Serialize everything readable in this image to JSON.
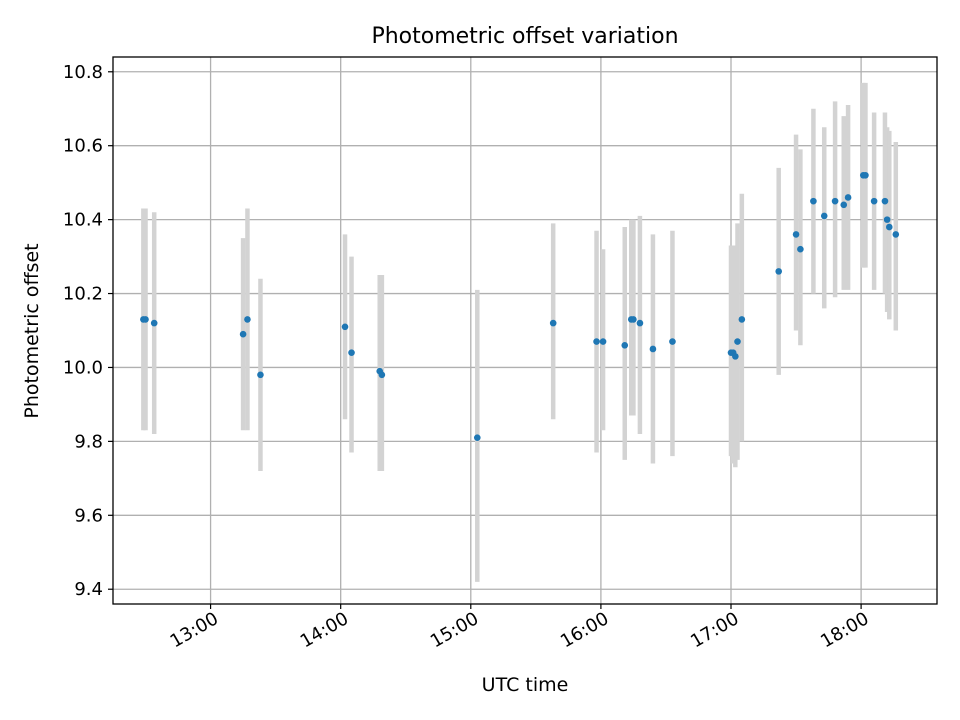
{
  "chart_data": {
    "type": "scatter",
    "title": "Photometric offset variation",
    "xlabel": "UTC time",
    "ylabel": "Photometric offset",
    "x_unit": "hours UTC",
    "xlim": [
      "12:15",
      "18:35"
    ],
    "ylim": [
      9.36,
      10.84
    ],
    "x_ticks": [
      "13:00",
      "14:00",
      "15:00",
      "16:00",
      "17:00",
      "18:00"
    ],
    "y_ticks": [
      "9.4",
      "9.6",
      "9.8",
      "10.0",
      "10.2",
      "10.4",
      "10.6",
      "10.8"
    ],
    "grid": true,
    "legend": "none",
    "colors": {
      "point": "#1f77b4",
      "errorbar": "#d3d3d3",
      "grid": "#b0b0b0"
    },
    "points": [
      {
        "t": "12:29",
        "y": 10.13,
        "lo": 9.83,
        "hi": 10.43
      },
      {
        "t": "12:30",
        "y": 10.13,
        "lo": 9.83,
        "hi": 10.43
      },
      {
        "t": "12:34",
        "y": 10.12,
        "lo": 9.82,
        "hi": 10.42
      },
      {
        "t": "13:15",
        "y": 10.09,
        "lo": 9.83,
        "hi": 10.35
      },
      {
        "t": "13:17",
        "y": 10.13,
        "lo": 9.83,
        "hi": 10.43
      },
      {
        "t": "13:23",
        "y": 9.98,
        "lo": 9.72,
        "hi": 10.24
      },
      {
        "t": "14:02",
        "y": 10.11,
        "lo": 9.86,
        "hi": 10.36
      },
      {
        "t": "14:05",
        "y": 10.04,
        "lo": 9.77,
        "hi": 10.3
      },
      {
        "t": "14:18",
        "y": 9.99,
        "lo": 9.72,
        "hi": 10.25
      },
      {
        "t": "14:19",
        "y": 9.98,
        "lo": 9.72,
        "hi": 10.25
      },
      {
        "t": "15:03",
        "y": 9.81,
        "lo": 9.42,
        "hi": 10.21
      },
      {
        "t": "15:38",
        "y": 10.12,
        "lo": 9.86,
        "hi": 10.39
      },
      {
        "t": "15:58",
        "y": 10.07,
        "lo": 9.77,
        "hi": 10.37
      },
      {
        "t": "16:01",
        "y": 10.07,
        "lo": 9.83,
        "hi": 10.32
      },
      {
        "t": "16:11",
        "y": 10.06,
        "lo": 9.75,
        "hi": 10.38
      },
      {
        "t": "16:14",
        "y": 10.13,
        "lo": 9.87,
        "hi": 10.4
      },
      {
        "t": "16:15",
        "y": 10.13,
        "lo": 9.87,
        "hi": 10.4
      },
      {
        "t": "16:18",
        "y": 10.12,
        "lo": 9.82,
        "hi": 10.41
      },
      {
        "t": "16:24",
        "y": 10.05,
        "lo": 9.74,
        "hi": 10.36
      },
      {
        "t": "16:33",
        "y": 10.07,
        "lo": 9.76,
        "hi": 10.37
      },
      {
        "t": "17:00",
        "y": 10.04,
        "lo": 9.76,
        "hi": 10.33
      },
      {
        "t": "17:01",
        "y": 10.04,
        "lo": 9.74,
        "hi": 10.33
      },
      {
        "t": "17:02",
        "y": 10.03,
        "lo": 9.73,
        "hi": 10.33
      },
      {
        "t": "17:03",
        "y": 10.07,
        "lo": 9.75,
        "hi": 10.39
      },
      {
        "t": "17:05",
        "y": 10.13,
        "lo": 9.8,
        "hi": 10.47
      },
      {
        "t": "17:22",
        "y": 10.26,
        "lo": 9.98,
        "hi": 10.54
      },
      {
        "t": "17:30",
        "y": 10.36,
        "lo": 10.1,
        "hi": 10.63
      },
      {
        "t": "17:32",
        "y": 10.32,
        "lo": 10.06,
        "hi": 10.59
      },
      {
        "t": "17:38",
        "y": 10.45,
        "lo": 10.2,
        "hi": 10.7
      },
      {
        "t": "17:43",
        "y": 10.41,
        "lo": 10.16,
        "hi": 10.65
      },
      {
        "t": "17:48",
        "y": 10.45,
        "lo": 10.19,
        "hi": 10.72
      },
      {
        "t": "17:52",
        "y": 10.44,
        "lo": 10.21,
        "hi": 10.68
      },
      {
        "t": "17:54",
        "y": 10.46,
        "lo": 10.21,
        "hi": 10.71
      },
      {
        "t": "18:01",
        "y": 10.52,
        "lo": 10.27,
        "hi": 10.77
      },
      {
        "t": "18:02",
        "y": 10.52,
        "lo": 10.27,
        "hi": 10.77
      },
      {
        "t": "18:06",
        "y": 10.45,
        "lo": 10.21,
        "hi": 10.69
      },
      {
        "t": "18:11",
        "y": 10.45,
        "lo": 10.2,
        "hi": 10.69
      },
      {
        "t": "18:12",
        "y": 10.4,
        "lo": 10.15,
        "hi": 10.65
      },
      {
        "t": "18:13",
        "y": 10.38,
        "lo": 10.13,
        "hi": 10.64
      },
      {
        "t": "18:16",
        "y": 10.36,
        "lo": 10.1,
        "hi": 10.61
      }
    ]
  }
}
